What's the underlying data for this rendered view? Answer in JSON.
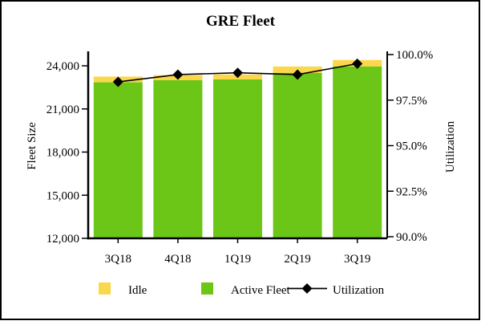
{
  "chart_data": {
    "type": "bar",
    "subtype": "stacked-bar-with-line-combo",
    "title": "GRE Fleet",
    "categories": [
      "3Q18",
      "4Q18",
      "1Q19",
      "2Q19",
      "3Q19"
    ],
    "series": [
      {
        "name": "Idle",
        "type": "bar",
        "stack_position": "top",
        "color": "#FAD74B",
        "values": [
          400,
          350,
          350,
          450,
          450
        ]
      },
      {
        "name": "Active Fleet",
        "type": "bar",
        "stack_position": "bottom",
        "color": "#6BC617",
        "values": [
          22850,
          23000,
          23050,
          23500,
          23950
        ]
      },
      {
        "name": "Utilization",
        "type": "line",
        "axis": "right",
        "color": "#000000",
        "marker": "diamond",
        "values": [
          98.5,
          98.9,
          99.0,
          98.9,
          99.5
        ]
      }
    ],
    "bar_totals": [
      23250,
      23350,
      23400,
      23950,
      24400
    ],
    "left_axis": {
      "label": "Fleet Size",
      "min": 12000,
      "max": 24000,
      "ticks": [
        24000,
        21000,
        18000,
        15000,
        12000
      ],
      "tick_labels": [
        "24,000",
        "21,000",
        "18,000",
        "15,000",
        "12,000"
      ]
    },
    "right_axis": {
      "label": "Utilization",
      "min": 90.0,
      "max": 100.0,
      "ticks": [
        100.0,
        97.5,
        95.0,
        92.5,
        90.0
      ],
      "tick_labels": [
        "100.0%",
        "97.5%",
        "95.0%",
        "92.5%",
        "90.0%"
      ]
    },
    "grid": false,
    "legend_position": "bottom"
  }
}
